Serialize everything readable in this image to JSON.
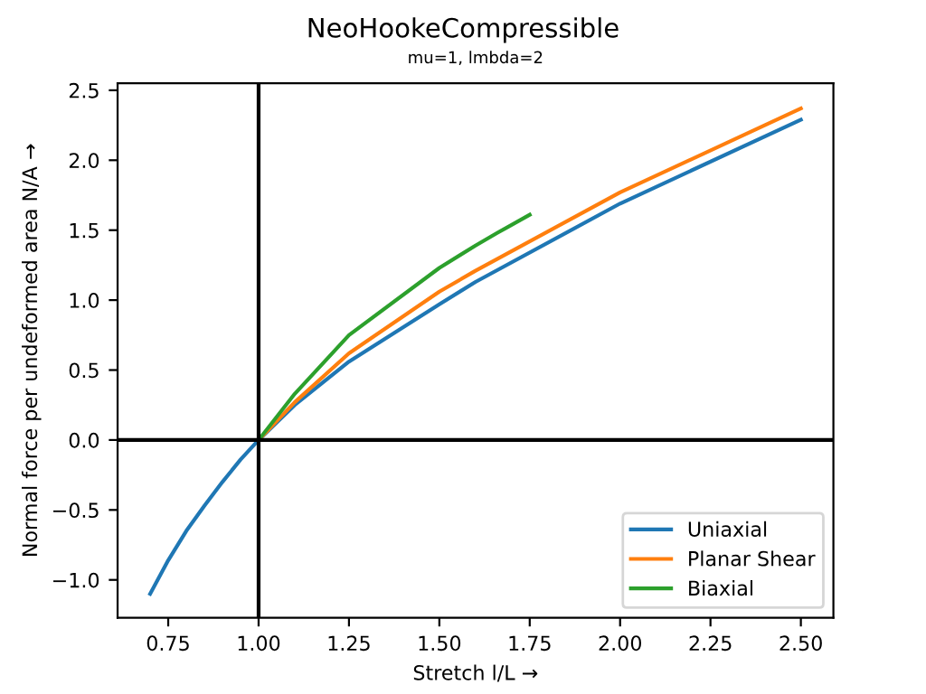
{
  "chart_data": {
    "type": "line",
    "title": "NeoHookeCompressible",
    "subtitle": "mu=1, lmbda=2",
    "xlabel": "Stretch l/L →",
    "ylabel": "Normal force per undeformed area N/A →",
    "series": [
      {
        "name": "Uniaxial",
        "color": "#1f77b4",
        "x": [
          0.7,
          0.75,
          0.8,
          0.85,
          0.9,
          0.95,
          1.0,
          1.1,
          1.25,
          1.5,
          1.6,
          2.0,
          2.5
        ],
        "values": [
          -1.1,
          -0.86,
          -0.65,
          -0.47,
          -0.3,
          -0.14,
          0,
          0.25,
          0.56,
          0.97,
          1.13,
          1.69,
          2.29
        ]
      },
      {
        "name": "Planar Shear",
        "color": "#ff7f0e",
        "x": [
          1.0,
          1.1,
          1.25,
          1.5,
          1.6,
          2.0,
          2.5
        ],
        "values": [
          0,
          0.27,
          0.62,
          1.06,
          1.21,
          1.77,
          2.37
        ]
      },
      {
        "name": "Biaxial",
        "color": "#2ca02c",
        "x": [
          1.0,
          1.1,
          1.25,
          1.5,
          1.6,
          1.66,
          1.75
        ],
        "values": [
          0,
          0.33,
          0.75,
          1.23,
          1.39,
          1.48,
          1.61
        ]
      }
    ],
    "xlim": [
      0.61,
      2.59
    ],
    "ylim": [
      -1.27,
      2.55
    ],
    "xticks": [
      {
        "value": 0.75,
        "label": "0.75"
      },
      {
        "value": 1.0,
        "label": "1.00"
      },
      {
        "value": 1.25,
        "label": "1.25"
      },
      {
        "value": 1.5,
        "label": "1.50"
      },
      {
        "value": 1.75,
        "label": "1.75"
      },
      {
        "value": 2.0,
        "label": "2.00"
      },
      {
        "value": 2.25,
        "label": "2.25"
      },
      {
        "value": 2.5,
        "label": "2.50"
      }
    ],
    "yticks": [
      {
        "value": -1.0,
        "label": "−1.0"
      },
      {
        "value": -0.5,
        "label": "−0.5"
      },
      {
        "value": 0,
        "label": "0.0"
      },
      {
        "value": 0.5,
        "label": "0.5"
      },
      {
        "value": 1.0,
        "label": "1.0"
      },
      {
        "value": 1.5,
        "label": "1.5"
      },
      {
        "value": 2.0,
        "label": "2.0"
      },
      {
        "value": 2.5,
        "label": "2.5"
      }
    ],
    "ref_lines": [
      {
        "axis": "x",
        "value": 1.0,
        "color": "#000000"
      },
      {
        "axis": "y",
        "value": 0,
        "color": "#000000"
      }
    ],
    "legend": "bottom right",
    "grid": false,
    "marker": "none",
    "line_style": "solid"
  }
}
